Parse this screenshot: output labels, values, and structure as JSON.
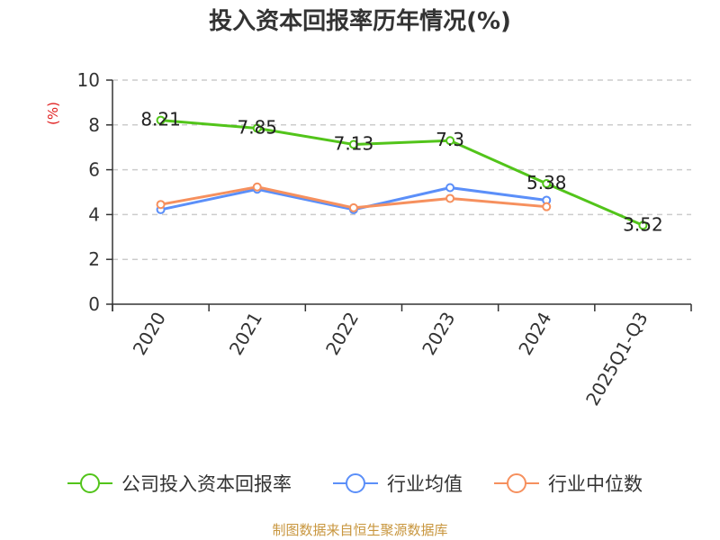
{
  "chart_data": {
    "type": "line",
    "title": "投入资本回报率历年情况(%)",
    "ylabel": "(%)",
    "xlabel": "",
    "categories": [
      "2020",
      "2021",
      "2022",
      "2023",
      "2024",
      "2025Q1-Q3"
    ],
    "ylim": [
      0,
      10
    ],
    "yticks": [
      0,
      2,
      4,
      6,
      8,
      10
    ],
    "grid": "horizontal-dashed",
    "legend_position": "bottom",
    "series": [
      {
        "name": "公司投入资本回报率",
        "color": "#52c41a",
        "values": [
          8.21,
          7.85,
          7.13,
          7.3,
          5.38,
          3.52
        ],
        "labels": [
          "8.21",
          "7.85",
          "7.13",
          "7.3",
          "5.38",
          "3.52"
        ]
      },
      {
        "name": "行业均值",
        "color": "#5b8ff9",
        "values": [
          4.22,
          5.13,
          4.22,
          5.2,
          4.64,
          null
        ]
      },
      {
        "name": "行业中位数",
        "color": "#f6905e",
        "values": [
          4.45,
          5.23,
          4.3,
          4.72,
          4.35,
          null
        ]
      }
    ]
  },
  "source": {
    "text": "制图数据来自恒生聚源数据库",
    "color": "#c8963e"
  },
  "colors": {
    "unit": "#e02020",
    "axis": "#333333",
    "grid": "#cccccc"
  }
}
